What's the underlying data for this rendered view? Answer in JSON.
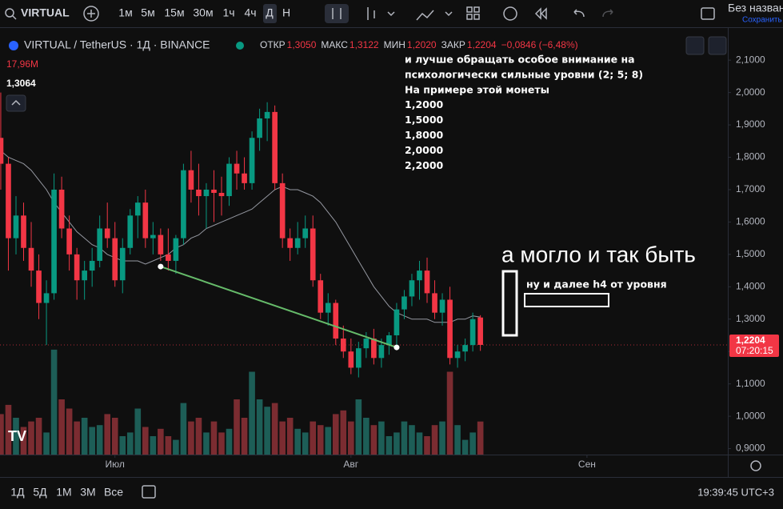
{
  "toolbar": {
    "symbol": "VIRTUAL",
    "intervals": [
      "1м",
      "5м",
      "15м",
      "30м",
      "1ч",
      "4ч",
      "Д",
      "Н"
    ],
    "layout_name": "Без назван",
    "save": "Сохранить"
  },
  "chart_data": {
    "type": "candlestick",
    "title": "VIRTUAL / TetherUS · 1Д · BINANCE",
    "ohlc_names": [
      "ОТКР",
      "МАКС",
      "МИН",
      "ЗАКР"
    ],
    "last_labels": [
      "1,3050",
      "1,3122",
      "1,2020",
      "1,2204"
    ],
    "change_label": "−0,0846 (−6,48%)",
    "candles": [
      [
        1.86,
        2.0,
        1.7,
        1.78
      ],
      [
        1.78,
        1.8,
        1.45,
        1.55
      ],
      [
        1.55,
        1.68,
        1.5,
        1.62
      ],
      [
        1.62,
        1.66,
        1.48,
        1.52
      ],
      [
        1.52,
        1.6,
        1.4,
        1.45
      ],
      [
        1.45,
        1.5,
        1.3,
        1.35
      ],
      [
        1.35,
        1.42,
        1.22,
        1.38
      ],
      [
        1.38,
        1.75,
        1.36,
        1.7
      ],
      [
        1.7,
        1.74,
        1.55,
        1.58
      ],
      [
        1.58,
        1.62,
        1.45,
        1.5
      ],
      [
        1.5,
        1.52,
        1.36,
        1.42
      ],
      [
        1.42,
        1.48,
        1.36,
        1.45
      ],
      [
        1.45,
        1.52,
        1.4,
        1.48
      ],
      [
        1.48,
        1.62,
        1.46,
        1.58
      ],
      [
        1.58,
        1.66,
        1.52,
        1.55
      ],
      [
        1.55,
        1.6,
        1.4,
        1.42
      ],
      [
        1.42,
        1.55,
        1.38,
        1.52
      ],
      [
        1.52,
        1.64,
        1.5,
        1.62
      ],
      [
        1.62,
        1.68,
        1.55,
        1.66
      ],
      [
        1.66,
        1.7,
        1.52,
        1.55
      ],
      [
        1.55,
        1.6,
        1.5,
        1.56
      ],
      [
        1.56,
        1.58,
        1.48,
        1.5
      ],
      [
        1.5,
        1.58,
        1.45,
        1.48
      ],
      [
        1.48,
        1.56,
        1.44,
        1.55
      ],
      [
        1.55,
        1.78,
        1.53,
        1.76
      ],
      [
        1.76,
        1.82,
        1.66,
        1.7
      ],
      [
        1.7,
        1.78,
        1.62,
        1.68
      ],
      [
        1.68,
        1.72,
        1.58,
        1.7
      ],
      [
        1.7,
        1.76,
        1.6,
        1.69
      ],
      [
        1.69,
        1.74,
        1.62,
        1.68
      ],
      [
        1.68,
        1.8,
        1.65,
        1.78
      ],
      [
        1.78,
        1.82,
        1.7,
        1.75
      ],
      [
        1.75,
        1.8,
        1.7,
        1.72
      ],
      [
        1.72,
        1.88,
        1.7,
        1.86
      ],
      [
        1.86,
        1.95,
        1.82,
        1.92
      ],
      [
        1.92,
        1.97,
        1.85,
        1.94
      ],
      [
        1.94,
        1.96,
        1.7,
        1.72
      ],
      [
        1.72,
        1.75,
        1.52,
        1.55
      ],
      [
        1.55,
        1.58,
        1.48,
        1.52
      ],
      [
        1.52,
        1.6,
        1.5,
        1.55
      ],
      [
        1.55,
        1.62,
        1.52,
        1.58
      ],
      [
        1.58,
        1.62,
        1.4,
        1.42
      ],
      [
        1.42,
        1.44,
        1.3,
        1.32
      ],
      [
        1.32,
        1.38,
        1.28,
        1.35
      ],
      [
        1.35,
        1.36,
        1.22,
        1.24
      ],
      [
        1.24,
        1.28,
        1.18,
        1.2
      ],
      [
        1.2,
        1.24,
        1.13,
        1.15
      ],
      [
        1.15,
        1.23,
        1.12,
        1.21
      ],
      [
        1.21,
        1.26,
        1.18,
        1.24
      ],
      [
        1.24,
        1.27,
        1.16,
        1.18
      ],
      [
        1.18,
        1.24,
        1.15,
        1.22
      ],
      [
        1.22,
        1.26,
        1.19,
        1.25
      ],
      [
        1.25,
        1.35,
        1.22,
        1.33
      ],
      [
        1.33,
        1.39,
        1.3,
        1.37
      ],
      [
        1.37,
        1.44,
        1.34,
        1.42
      ],
      [
        1.42,
        1.48,
        1.36,
        1.45
      ],
      [
        1.45,
        1.49,
        1.35,
        1.38
      ],
      [
        1.38,
        1.42,
        1.3,
        1.32
      ],
      [
        1.32,
        1.38,
        1.28,
        1.36
      ],
      [
        1.36,
        1.4,
        1.16,
        1.18
      ],
      [
        1.18,
        1.22,
        1.15,
        1.2
      ],
      [
        1.2,
        1.24,
        1.17,
        1.22
      ],
      [
        1.22,
        1.32,
        1.2,
        1.3
      ],
      [
        1.305,
        1.3122,
        1.202,
        1.2204
      ]
    ],
    "volumes": [
      22,
      27,
      20,
      15,
      18,
      20,
      12,
      57,
      30,
      25,
      18,
      20,
      15,
      16,
      22,
      20,
      10,
      12,
      25,
      15,
      10,
      14,
      10,
      8,
      28,
      18,
      20,
      12,
      18,
      12,
      14,
      30,
      20,
      45,
      30,
      26,
      28,
      18,
      20,
      14,
      12,
      18,
      16,
      15,
      22,
      24,
      18,
      30,
      20,
      16,
      18,
      10,
      12,
      18,
      16,
      12,
      10,
      16,
      18,
      45,
      16,
      8,
      12,
      17.96
    ],
    "volume_label": "17,96М",
    "vol_lim": [
      0,
      60
    ],
    "ma": [
      1.82,
      1.8,
      1.79,
      1.78,
      1.76,
      1.73,
      1.7,
      1.66,
      1.63,
      1.6,
      1.57,
      1.55,
      1.53,
      1.52,
      1.5,
      1.49,
      1.48,
      1.48,
      1.48,
      1.47,
      1.48,
      1.49,
      1.5,
      1.52,
      1.53,
      1.55,
      1.56,
      1.58,
      1.59,
      1.6,
      1.61,
      1.62,
      1.63,
      1.64,
      1.66,
      1.68,
      1.7,
      1.71,
      1.7,
      1.7,
      1.69,
      1.68,
      1.66,
      1.63,
      1.6,
      1.56,
      1.52,
      1.48,
      1.44,
      1.4,
      1.37,
      1.34,
      1.32,
      1.31,
      1.3,
      1.3,
      1.3,
      1.29,
      1.29,
      1.29,
      1.3,
      1.3,
      1.31,
      1.3064
    ],
    "ma_label": "1,3064",
    "ma_color": "#9598a1",
    "up_color": "#089981",
    "down_color": "#f23645",
    "up_volume_color": "#1d5e57",
    "down_volume_color": "#7b2c31",
    "trendline": {
      "color": "#66bb6a",
      "points": [
        [
          21,
          1.4624
        ],
        [
          52,
          1.2127
        ]
      ]
    },
    "xlim": [
      -0.1,
      95.5
    ],
    "xticks": [
      {
        "value": 15,
        "label": "Июл"
      },
      {
        "value": 46,
        "label": "Авг"
      },
      {
        "value": 77,
        "label": "Сен"
      }
    ],
    "ylim": [
      0.8816,
      2.1993
    ],
    "yticks": [
      {
        "value": 2.1,
        "label": "2,1000"
      },
      {
        "value": 2.0,
        "label": "2,0000"
      },
      {
        "value": 1.9,
        "label": "1,9000"
      },
      {
        "value": 1.8,
        "label": "1,8000"
      },
      {
        "value": 1.7,
        "label": "1,7000"
      },
      {
        "value": 1.6,
        "label": "1,6000"
      },
      {
        "value": 1.5,
        "label": "1,5000"
      },
      {
        "value": 1.4,
        "label": "1,4000"
      },
      {
        "value": 1.3,
        "label": "1,3000"
      },
      {
        "value": 1.2,
        "label": "1,2000"
      },
      {
        "value": 1.1,
        "label": "1,1000"
      },
      {
        "value": 1.0,
        "label": "1,0000"
      },
      {
        "value": 0.9,
        "label": "0,9000"
      }
    ],
    "countdown": "07:20:15",
    "annotations": {
      "notes": [
        "и лучше обращать особое внимание на",
        "психологически сильные уровни (2; 5; 8)",
        "На примере этой монеты",
        "1,2000",
        "1,5000",
        "1,8000",
        "2,0000",
        "2,2000"
      ],
      "big": "а могло и так быть",
      "small": "ну и далее h4 от уровня"
    }
  },
  "bottom_bar": {
    "ranges": [
      "1Д",
      "5Д",
      "1М",
      "3М",
      "Все"
    ],
    "clock": "19:39:45 UTC+3"
  }
}
